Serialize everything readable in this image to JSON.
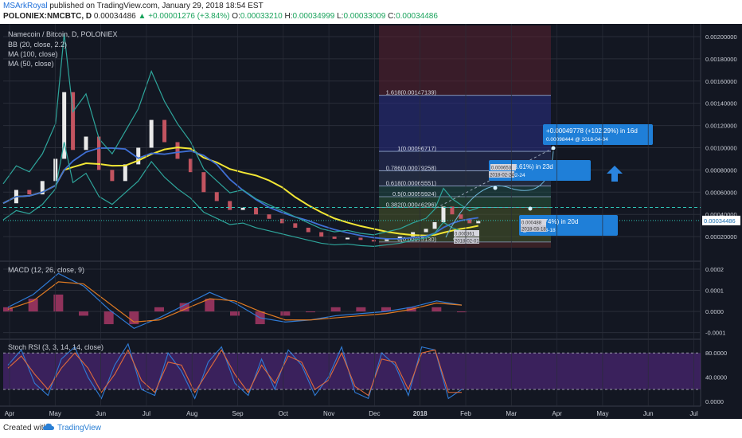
{
  "header": {
    "author": "MSArkRoyal",
    "published": "published on TradingView.com, January 29, 2018 18:54 EST",
    "symbol": "POLONIEX:NMCBTC, D",
    "last": "0.00034486",
    "change_arrow": "▲",
    "change": "+0.00001276 (+3.84%)",
    "o_label": "O:",
    "o": "0.00033210",
    "h_label": "H:",
    "h": "0.00034999",
    "l_label": "L:",
    "l": "0.00033009",
    "c_label": "C:",
    "c": "0.00034486"
  },
  "footer": {
    "created_with": "Created with",
    "brand": "TradingView"
  },
  "colors": {
    "bg": "#131722",
    "grid": "#2a2e39",
    "up": "#e9e9e9",
    "down": "#c25460",
    "ma100": "#f2e635",
    "ma50": "#3f6fd4",
    "bb": "#2ea59b",
    "macd": "#2f7bd6",
    "signal": "#e07b22",
    "stoch_k": "#2f7bd6",
    "stoch_d": "#e06a3a",
    "accent": "#2a84e0"
  },
  "chart_data": [
    {
      "type": "candlestick",
      "title": "Namecoin / Bitcoin, D, POLONIEX",
      "indicators": [
        "BB (20, close, 2.2)",
        "MA (100, close)",
        "MA (50, close)"
      ],
      "y_ticks": [
        "0.00200000",
        "0.00180000",
        "0.00160000",
        "0.00140000",
        "0.00120000",
        "0.00100000",
        "0.00080000",
        "0.00060000",
        "0.00040000",
        "0.00020000"
      ],
      "y_range": [
        0.0,
        0.0021
      ],
      "last_price_label": "0.00034486",
      "x_ticks": [
        "Apr",
        "May",
        "Jun",
        "Jul",
        "Aug",
        "Sep",
        "Oct",
        "Nov",
        "Dec",
        "2018",
        "Feb",
        "Mar",
        "Apr",
        "May",
        "Jun",
        "Jul"
      ],
      "price_trend": [
        {
          "x": 0,
          "close": 0.0005
        },
        {
          "x": 6,
          "close": 0.00062
        },
        {
          "x": 12,
          "close": 0.00058
        },
        {
          "x": 18,
          "close": 0.0007
        },
        {
          "x": 24,
          "close": 0.0009
        },
        {
          "x": 28,
          "close": 0.0015
        },
        {
          "x": 32,
          "close": 0.00098
        },
        {
          "x": 38,
          "close": 0.0011
        },
        {
          "x": 44,
          "close": 0.0008
        },
        {
          "x": 50,
          "close": 0.0007
        },
        {
          "x": 56,
          "close": 0.00085
        },
        {
          "x": 62,
          "close": 0.001
        },
        {
          "x": 68,
          "close": 0.00125
        },
        {
          "x": 74,
          "close": 0.00105
        },
        {
          "x": 80,
          "close": 0.0009
        },
        {
          "x": 86,
          "close": 0.00078
        },
        {
          "x": 92,
          "close": 0.0006
        },
        {
          "x": 98,
          "close": 0.00052
        },
        {
          "x": 104,
          "close": 0.00044
        },
        {
          "x": 110,
          "close": 0.00046
        },
        {
          "x": 116,
          "close": 0.0004
        },
        {
          "x": 122,
          "close": 0.00036
        },
        {
          "x": 128,
          "close": 0.00032
        },
        {
          "x": 134,
          "close": 0.00028
        },
        {
          "x": 140,
          "close": 0.00024
        },
        {
          "x": 146,
          "close": 0.0002
        },
        {
          "x": 152,
          "close": 0.00018
        },
        {
          "x": 158,
          "close": 0.00019
        },
        {
          "x": 164,
          "close": 0.00017
        },
        {
          "x": 170,
          "close": 0.00016
        },
        {
          "x": 176,
          "close": 0.00018
        },
        {
          "x": 182,
          "close": 0.0002
        },
        {
          "x": 188,
          "close": 0.00024
        },
        {
          "x": 194,
          "close": 0.00027
        },
        {
          "x": 198,
          "close": 0.00033
        },
        {
          "x": 202,
          "close": 0.00047
        },
        {
          "x": 206,
          "close": 0.0004
        },
        {
          "x": 210,
          "close": 0.00036
        },
        {
          "x": 214,
          "close": 0.00032
        },
        {
          "x": 218,
          "close": 0.00034
        }
      ],
      "x_range": [
        0,
        320
      ],
      "fibonacci": [
        {
          "label": "1.618(0.00147139)",
          "value": 0.00147139
        },
        {
          "label": "1(0.00096717)",
          "value": 0.00096717
        },
        {
          "label": "0.786(0.00079258)",
          "value": 0.00079258
        },
        {
          "label": "0.618(0.00065551)",
          "value": 0.00065551
        },
        {
          "label": "0.5(0.00055924)",
          "value": 0.00055924
        },
        {
          "label": "0.382(0.00046296)",
          "value": 0.00046296
        },
        {
          "label": "0(0.00015130)",
          "value": 0.0001513
        }
      ],
      "annotations": [
        {
          "text": "+0.00049778 (+102.29%) in 16d",
          "sub": "0.00098444 @ 2018-04-04"
        },
        {
          "text": "242 (+83.61%) in 23d",
          "sub": "@ 2018-02-24"
        },
        {
          "text": "14 (-26.74%) in 20d",
          "sub": "@ 2018-03-18"
        }
      ],
      "small_labels": [
        "0.000653",
        "2018-02-24",
        "0.000488",
        "2018-03-18",
        "0.000361",
        "2018-02-01"
      ]
    },
    {
      "type": "line",
      "title": "MACD (12, 26, close, 9)",
      "y_ticks": [
        "0.0002",
        "0.0001",
        "0.0000",
        "-0.0001"
      ],
      "y_range": [
        -0.00012,
        0.00023
      ],
      "macd": [
        2e-05,
        8e-05,
        0.00018,
        0.00012,
        1e-05,
        -8e-05,
        -3e-05,
        3e-05,
        9e-05,
        4e-05,
        -3e-05,
        -5e-05,
        -4e-05,
        -2e-05,
        -1e-05,
        0.0,
        2e-05,
        5e-05,
        3e-05
      ],
      "signal": [
        1e-05,
        5e-05,
        0.00014,
        0.00013,
        4e-05,
        -5e-05,
        -4e-05,
        1e-05,
        6e-05,
        5e-05,
        0.0,
        -4e-05,
        -4e-05,
        -3e-05,
        -2e-05,
        -1e-05,
        1e-05,
        4e-05,
        3e-05
      ]
    },
    {
      "type": "line",
      "title": "Stoch RSI (3, 3, 14, 14, close)",
      "y_ticks": [
        "80.0000",
        "40.0000",
        "0.0000"
      ],
      "y_range": [
        -5,
        100
      ],
      "k": [
        60,
        85,
        30,
        10,
        70,
        90,
        40,
        5,
        60,
        95,
        20,
        10,
        80,
        50,
        5,
        65,
        90,
        30,
        10,
        70,
        20,
        85,
        60,
        10,
        40,
        90,
        15,
        5,
        80,
        60,
        10,
        90,
        85,
        5,
        20
      ],
      "d": [
        55,
        75,
        45,
        20,
        55,
        80,
        55,
        15,
        45,
        85,
        35,
        15,
        65,
        60,
        15,
        50,
        85,
        45,
        15,
        60,
        30,
        75,
        65,
        20,
        35,
        80,
        25,
        10,
        70,
        65,
        20,
        80,
        85,
        15,
        15
      ]
    }
  ]
}
